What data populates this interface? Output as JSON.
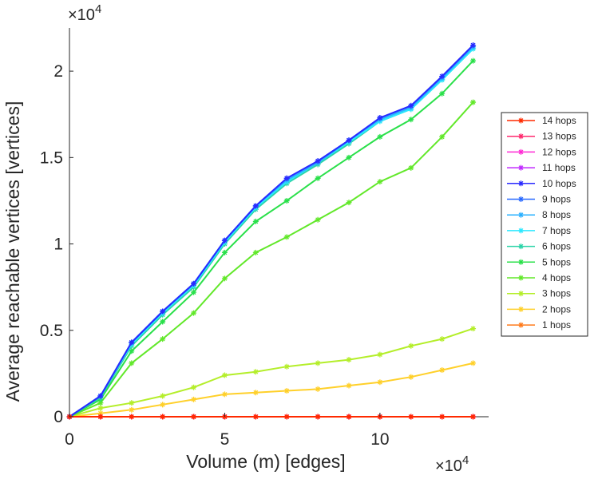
{
  "chart_data": {
    "type": "line",
    "xlabel": "Volume (m) [edges]",
    "ylabel": "Average reachable vertices [vertices]",
    "x_multiplier": {
      "base": "×10",
      "exp": "4"
    },
    "y_multiplier": {
      "base": "×10",
      "exp": "4"
    },
    "xlim": [
      0,
      13.5
    ],
    "ylim": [
      0,
      2.25
    ],
    "xticks": [
      0,
      5,
      10
    ],
    "xtick_labels": [
      "0",
      "5",
      "10"
    ],
    "yticks": [
      0,
      0.5,
      1,
      1.5,
      2
    ],
    "ytick_labels": [
      "0",
      "0.5",
      "1",
      "1.5",
      "2"
    ],
    "legend_position": "right",
    "x": [
      0,
      1,
      2,
      3,
      4,
      5,
      6,
      7,
      8,
      9,
      10,
      11,
      12,
      13
    ],
    "series": [
      {
        "name": "14 hops",
        "color": "#ff2a00",
        "values": [
          0,
          0,
          0,
          0,
          0,
          0,
          0,
          0,
          0,
          0,
          0,
          0,
          0,
          0
        ]
      },
      {
        "name": "13 hops",
        "color": "#ff2a6e",
        "values": [
          0,
          0,
          0,
          0,
          0,
          0,
          0,
          0,
          0,
          0,
          0,
          0,
          0,
          0
        ]
      },
      {
        "name": "12 hops",
        "color": "#ff2ad4",
        "values": [
          0,
          0,
          0,
          0,
          0,
          0,
          0,
          0,
          0,
          0,
          0,
          0,
          0,
          0
        ]
      },
      {
        "name": "11 hops",
        "color": "#c02aff",
        "values": [
          0,
          0,
          0,
          0,
          0,
          0,
          0,
          0,
          0,
          0,
          0,
          0,
          0,
          0
        ]
      },
      {
        "name": "10 hops",
        "color": "#2a2aff",
        "values": [
          0,
          0.12,
          0.43,
          0.61,
          0.77,
          1.02,
          1.22,
          1.38,
          1.48,
          1.6,
          1.73,
          1.8,
          1.97,
          2.15
        ]
      },
      {
        "name": "9 hops",
        "color": "#2a6aff",
        "values": [
          0,
          0.12,
          0.43,
          0.61,
          0.77,
          1.02,
          1.22,
          1.38,
          1.48,
          1.6,
          1.73,
          1.8,
          1.97,
          2.15
        ]
      },
      {
        "name": "8 hops",
        "color": "#2ab0ff",
        "values": [
          0,
          0.12,
          0.43,
          0.61,
          0.77,
          1.02,
          1.22,
          1.37,
          1.47,
          1.6,
          1.72,
          1.79,
          1.96,
          2.14
        ]
      },
      {
        "name": "7 hops",
        "color": "#2ae8ff",
        "values": [
          0,
          0.12,
          0.42,
          0.6,
          0.76,
          1.01,
          1.21,
          1.36,
          1.47,
          1.59,
          1.71,
          1.78,
          1.95,
          2.13
        ]
      },
      {
        "name": "6 hops",
        "color": "#2ad4a8",
        "values": [
          0,
          0.11,
          0.41,
          0.59,
          0.75,
          1.0,
          1.2,
          1.35,
          1.46,
          1.58,
          1.71,
          1.78,
          1.95,
          2.13
        ]
      },
      {
        "name": "5 hops",
        "color": "#2ae04a",
        "values": [
          0,
          0.1,
          0.38,
          0.55,
          0.72,
          0.95,
          1.13,
          1.25,
          1.38,
          1.5,
          1.62,
          1.72,
          1.87,
          2.06
        ]
      },
      {
        "name": "4 hops",
        "color": "#62e82a",
        "values": [
          0,
          0.08,
          0.31,
          0.45,
          0.6,
          0.8,
          0.95,
          1.04,
          1.14,
          1.24,
          1.36,
          1.44,
          1.62,
          1.82
        ]
      },
      {
        "name": "3 hops",
        "color": "#b4ee2a",
        "values": [
          0,
          0.05,
          0.08,
          0.12,
          0.17,
          0.24,
          0.26,
          0.29,
          0.31,
          0.33,
          0.36,
          0.41,
          0.45,
          0.51
        ]
      },
      {
        "name": "2 hops",
        "color": "#ffd02a",
        "values": [
          0,
          0.02,
          0.04,
          0.07,
          0.1,
          0.13,
          0.14,
          0.15,
          0.16,
          0.18,
          0.2,
          0.23,
          0.27,
          0.31
        ]
      },
      {
        "name": "1 hops",
        "color": "#ff7a1a",
        "values": [
          0,
          0,
          0,
          0,
          0,
          0,
          0,
          0,
          0,
          0,
          0,
          0,
          0,
          0
        ]
      }
    ]
  }
}
